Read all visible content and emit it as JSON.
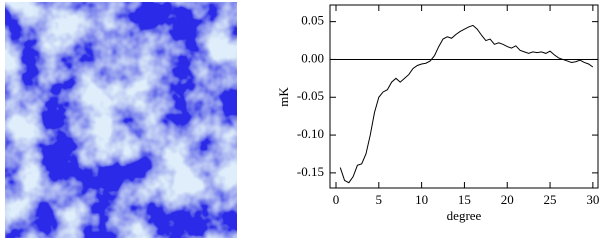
{
  "chart_data": {
    "type": "line",
    "xlabel": "degree",
    "ylabel": "mK",
    "x": [
      0.5,
      1,
      1.5,
      2,
      2.5,
      3,
      3.5,
      4,
      4.5,
      5,
      5.5,
      6,
      6.5,
      7,
      7.5,
      8,
      8.5,
      9,
      9.5,
      10,
      10.5,
      11,
      11.5,
      12,
      12.5,
      13,
      13.5,
      14,
      14.5,
      15,
      15.5,
      16,
      16.5,
      17,
      17.5,
      18,
      18.5,
      19,
      19.5,
      20,
      20.5,
      21,
      21.5,
      22,
      22.5,
      23,
      23.5,
      24,
      24.5,
      25,
      25.5,
      26,
      26.5,
      27,
      27.5,
      28,
      28.5,
      29,
      29.5,
      30
    ],
    "series": [
      {
        "color": "#000000",
        "values": [
          -0.143,
          -0.16,
          -0.163,
          -0.155,
          -0.14,
          -0.138,
          -0.125,
          -0.1,
          -0.07,
          -0.05,
          -0.043,
          -0.04,
          -0.03,
          -0.025,
          -0.03,
          -0.025,
          -0.02,
          -0.012,
          -0.008,
          -0.006,
          -0.005,
          -0.002,
          0.005,
          0.017,
          0.027,
          0.03,
          0.028,
          0.033,
          0.037,
          0.04,
          0.043,
          0.045,
          0.04,
          0.032,
          0.025,
          0.027,
          0.02,
          0.022,
          0.02,
          0.017,
          0.015,
          0.018,
          0.012,
          0.01,
          0.008,
          0.01,
          0.009,
          0.01,
          0.008,
          0.011,
          0.006,
          0.002,
          0.0,
          -0.002,
          -0.004,
          -0.003,
          -0.001,
          -0.004,
          -0.006,
          -0.01
        ]
      }
    ],
    "xlim": [
      -0.7,
      30.6
    ],
    "ylim": [
      -0.17,
      0.072
    ],
    "xticks": [
      0,
      5,
      10,
      15,
      20,
      25,
      30
    ],
    "yticks": [
      0.05,
      {
        "value": 0,
        "label": "0.00"
      },
      -0.05,
      {
        "value": -0.1,
        "label": "-0.10"
      },
      -0.15
    ],
    "zero_line": true
  }
}
